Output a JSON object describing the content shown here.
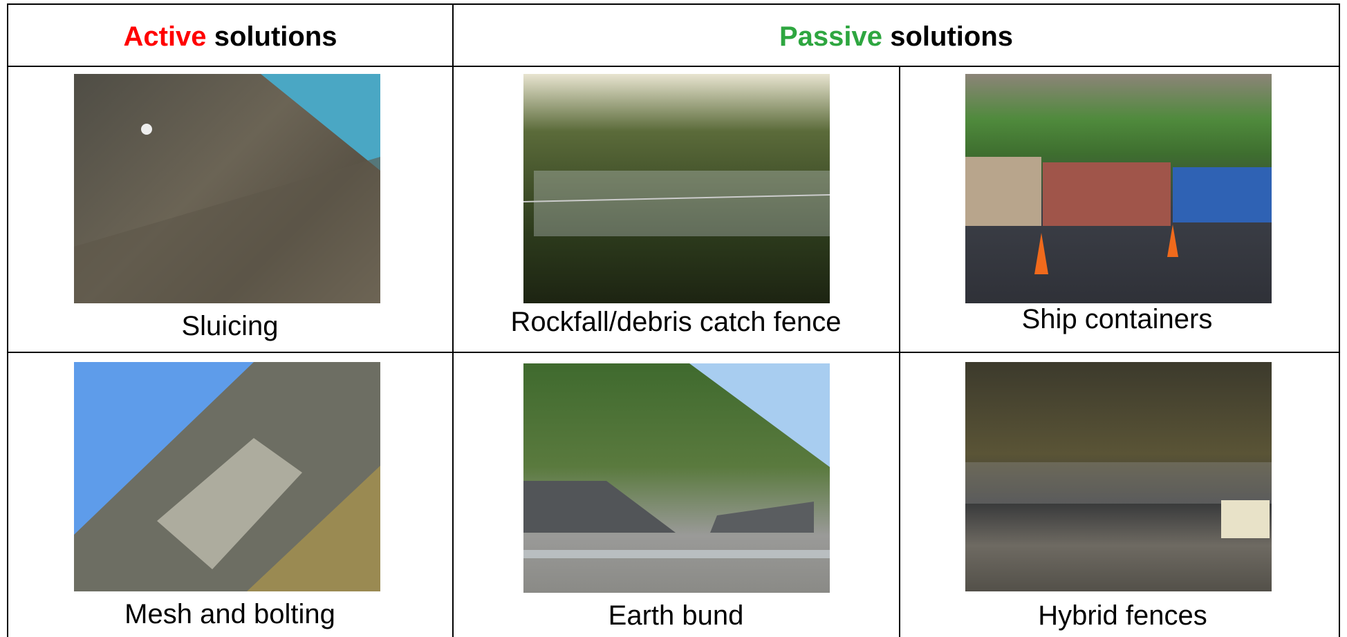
{
  "header": [
    {
      "highlight": "Active",
      "text": "solutions"
    },
    {
      "highlight": "Passive",
      "text": "solutions"
    }
  ],
  "rows": [
    [
      "Sluicing",
      "Rockfall/debris catch fence",
      "Ship containers"
    ],
    [
      "Mesh and bolting",
      "Earth bund",
      "Hybrid fences"
    ]
  ]
}
